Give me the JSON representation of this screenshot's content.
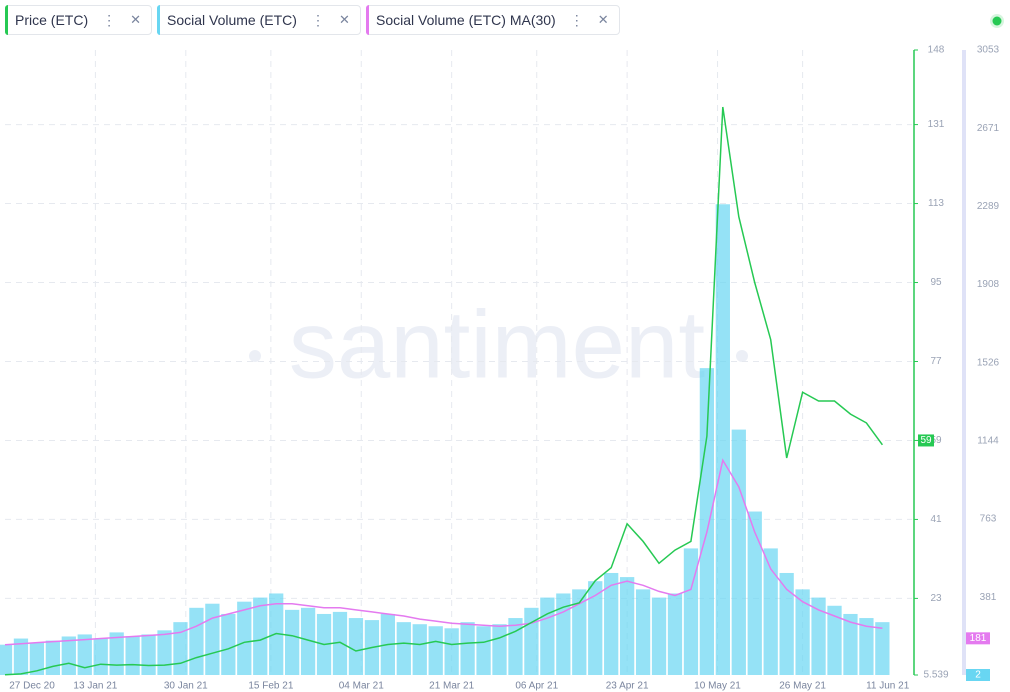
{
  "chart_data": {
    "type": "line",
    "legend": [
      "Price (ETC)",
      "Social Volume (ETC)",
      "Social Volume (ETC) MA(30)"
    ],
    "watermark": "santiment",
    "x": [
      "2020-12-27",
      "2020-12-30",
      "2021-01-02",
      "2021-01-05",
      "2021-01-08",
      "2021-01-11",
      "2021-01-14",
      "2021-01-17",
      "2021-01-20",
      "2021-01-23",
      "2021-01-26",
      "2021-01-29",
      "2021-02-01",
      "2021-02-04",
      "2021-02-07",
      "2021-02-10",
      "2021-02-13",
      "2021-02-16",
      "2021-02-19",
      "2021-02-22",
      "2021-02-25",
      "2021-02-28",
      "2021-03-03",
      "2021-03-06",
      "2021-03-09",
      "2021-03-12",
      "2021-03-15",
      "2021-03-18",
      "2021-03-21",
      "2021-03-24",
      "2021-03-27",
      "2021-03-30",
      "2021-04-02",
      "2021-04-05",
      "2021-04-08",
      "2021-04-11",
      "2021-04-14",
      "2021-04-17",
      "2021-04-20",
      "2021-04-23",
      "2021-04-26",
      "2021-04-29",
      "2021-05-02",
      "2021-05-05",
      "2021-05-08",
      "2021-05-11",
      "2021-05-14",
      "2021-05-17",
      "2021-05-20",
      "2021-05-23",
      "2021-05-26",
      "2021-05-29",
      "2021-06-01",
      "2021-06-04",
      "2021-06-07",
      "2021-06-10"
    ],
    "xlim": [
      "2020-12-27",
      "2021-06-12"
    ],
    "xticks": [
      {
        "value": "2020-12-27",
        "label": "27 Dec 20"
      },
      {
        "value": "2021-01-13",
        "label": "13 Jan 21"
      },
      {
        "value": "2021-01-30",
        "label": "30 Jan 21"
      },
      {
        "value": "2021-02-15",
        "label": "15 Feb 21"
      },
      {
        "value": "2021-03-04",
        "label": "04 Mar 21"
      },
      {
        "value": "2021-03-21",
        "label": "21 Mar 21"
      },
      {
        "value": "2021-04-06",
        "label": "06 Apr 21"
      },
      {
        "value": "2021-04-23",
        "label": "23 Apr 21"
      },
      {
        "value": "2021-05-10",
        "label": "10 May 21"
      },
      {
        "value": "2021-05-26",
        "label": "26 May 21"
      },
      {
        "value": "2021-06-11",
        "label": "11 Jun 21"
      }
    ],
    "ylim": [
      5.539,
      148
    ],
    "yticks": [
      5.539,
      23,
      41,
      59,
      77,
      95,
      113,
      131,
      148
    ],
    "y2lim": [
      2,
      3053
    ],
    "y2ticks": [
      381,
      763,
      1144,
      1526,
      1908,
      2289,
      2671,
      3053
    ],
    "grid": true,
    "series": [
      {
        "name": "Price (ETC)",
        "type": "line",
        "color": "#26c953",
        "axis": "y",
        "last_value": 59,
        "values": [
          5.6,
          5.8,
          6.5,
          7.5,
          8.2,
          7.2,
          8.0,
          7.8,
          7.9,
          7.7,
          7.8,
          8.2,
          9.5,
          10.5,
          11.5,
          13,
          13.5,
          15,
          14.5,
          13.5,
          12.5,
          13,
          11,
          11.8,
          12.5,
          12.8,
          12.5,
          13.2,
          12.5,
          12.8,
          13,
          14,
          15.5,
          17.5,
          19.5,
          21,
          22,
          27,
          30,
          40,
          36,
          31,
          34,
          36,
          60,
          135,
          110,
          95,
          82,
          55,
          70,
          68,
          68,
          65,
          63,
          58
        ]
      },
      {
        "name": "Social Volume (ETC)",
        "type": "bar",
        "color": "#68d6f2",
        "axis": "y2",
        "last_value": 2,
        "values": [
          150,
          180,
          160,
          170,
          190,
          200,
          180,
          210,
          190,
          200,
          220,
          260,
          330,
          350,
          300,
          360,
          380,
          400,
          320,
          330,
          300,
          310,
          280,
          270,
          300,
          260,
          250,
          240,
          230,
          260,
          240,
          250,
          280,
          330,
          380,
          400,
          420,
          460,
          500,
          480,
          420,
          380,
          400,
          620,
          1500,
          2300,
          1200,
          800,
          620,
          500,
          420,
          380,
          340,
          300,
          280,
          260
        ]
      },
      {
        "name": "Social Volume (ETC) MA(30)",
        "type": "line",
        "color": "#e47aef",
        "axis": "y2",
        "last_value": 181,
        "values": [
          150,
          155,
          160,
          165,
          170,
          175,
          180,
          185,
          190,
          195,
          200,
          210,
          240,
          280,
          300,
          320,
          340,
          350,
          350,
          340,
          330,
          330,
          320,
          310,
          300,
          290,
          275,
          265,
          255,
          250,
          245,
          240,
          245,
          255,
          280,
          310,
          350,
          390,
          440,
          460,
          440,
          410,
          390,
          420,
          700,
          1050,
          920,
          700,
          520,
          420,
          360,
          320,
          290,
          260,
          240,
          230
        ]
      }
    ]
  }
}
